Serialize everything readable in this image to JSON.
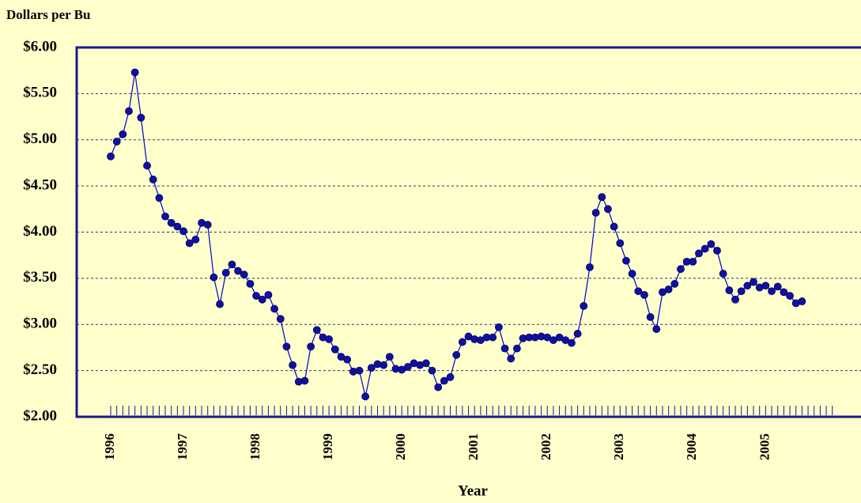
{
  "chart_data": {
    "type": "line",
    "y_label": "Dollars per Bu",
    "x_label": "Year",
    "categories": [
      "1996",
      null,
      null,
      null,
      null,
      null,
      null,
      null,
      null,
      null,
      null,
      null,
      "1997",
      null,
      null,
      null,
      null,
      null,
      null,
      null,
      null,
      null,
      null,
      null,
      "1998",
      null,
      null,
      null,
      null,
      null,
      null,
      null,
      null,
      null,
      null,
      null,
      "1999",
      null,
      null,
      null,
      null,
      null,
      null,
      null,
      null,
      null,
      null,
      null,
      "2000",
      null,
      null,
      null,
      null,
      null,
      null,
      null,
      null,
      null,
      null,
      null,
      "2001",
      null,
      null,
      null,
      null,
      null,
      null,
      null,
      null,
      null,
      null,
      null,
      "2002",
      null,
      null,
      null,
      null,
      null,
      null,
      null,
      null,
      null,
      null,
      null,
      "2003",
      null,
      null,
      null,
      null,
      null,
      null,
      null,
      null,
      null,
      null,
      null,
      "2004",
      null,
      null,
      null,
      null,
      null,
      null,
      null,
      null,
      null,
      null,
      null,
      "2005",
      null,
      null,
      null,
      null,
      null,
      null,
      null,
      null,
      null,
      null,
      null
    ],
    "series": [
      {
        "color": "#0000cc",
        "values": [
          4.82,
          4.98,
          5.06,
          5.31,
          5.73,
          5.24,
          4.72,
          4.57,
          4.37,
          4.17,
          4.1,
          4.06,
          4.01,
          3.88,
          3.92,
          4.1,
          4.08,
          3.51,
          3.22,
          3.56,
          3.65,
          3.58,
          3.54,
          3.44,
          3.31,
          3.27,
          3.32,
          3.17,
          3.06,
          2.76,
          2.56,
          2.38,
          2.39,
          2.76,
          2.94,
          2.86,
          2.84,
          2.73,
          2.65,
          2.62,
          2.49,
          2.5,
          2.22,
          2.53,
          2.57,
          2.56,
          2.65,
          2.52,
          2.51,
          2.54,
          2.58,
          2.56,
          2.58,
          2.5,
          2.32,
          2.39,
          2.43,
          2.67,
          2.81,
          2.87,
          2.84,
          2.83,
          2.86,
          2.86,
          2.97,
          2.74,
          2.63,
          2.74,
          2.85,
          2.86,
          2.86,
          2.87,
          2.86,
          2.83,
          2.86,
          2.83,
          2.8,
          2.9,
          3.2,
          3.62,
          4.21,
          4.38,
          4.25,
          4.06,
          3.88,
          3.69,
          3.55,
          3.36,
          3.32,
          3.08,
          2.95,
          3.35,
          3.38,
          3.44,
          3.6,
          3.68,
          3.68,
          3.77,
          3.82,
          3.87,
          3.8,
          3.55,
          3.37,
          3.27,
          3.36,
          3.42,
          3.46,
          3.4,
          3.42,
          3.36,
          3.41,
          3.35,
          3.31,
          3.23,
          3.25,
          null,
          null,
          null,
          null,
          null
        ]
      }
    ],
    "ylim": [
      2,
      6
    ],
    "yticks": [
      {
        "value": 2,
        "label": "$2.00"
      },
      {
        "value": 2.5,
        "label": "$2.50"
      },
      {
        "value": 3,
        "label": "$3.00"
      },
      {
        "value": 3.5,
        "label": "$3.50"
      },
      {
        "value": 4,
        "label": "$4.00"
      },
      {
        "value": 4.5,
        "label": "$4.50"
      },
      {
        "value": 5,
        "label": "$5.00"
      },
      {
        "value": 5.5,
        "label": "$5.50"
      },
      {
        "value": 6,
        "label": "$6.00"
      }
    ],
    "grid": true,
    "marker_color": "#1010a0"
  }
}
